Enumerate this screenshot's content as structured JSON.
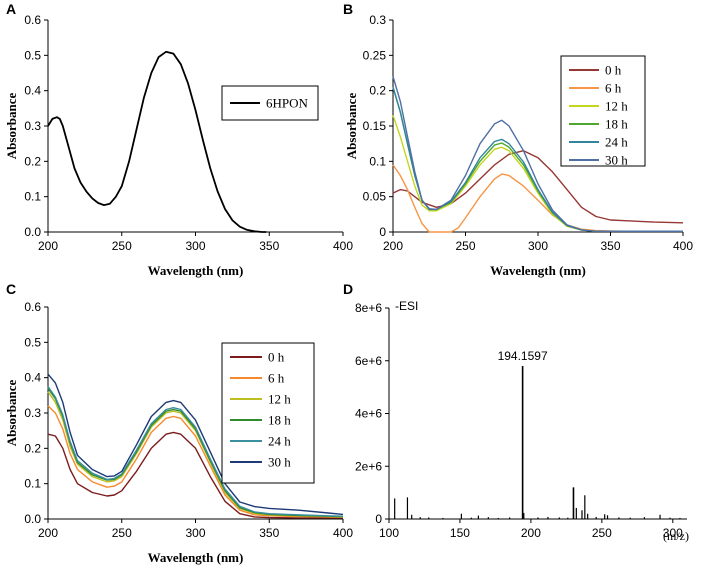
{
  "chart_data": [
    {
      "panel": "A",
      "type": "line",
      "xlabel": "Wavelength (nm)",
      "ylabel": "Absorbance",
      "xlim": [
        200,
        400
      ],
      "ylim": [
        0,
        0.6
      ],
      "xticks": [
        "200",
        "250",
        "300",
        "350",
        "400"
      ],
      "yticks": [
        "0.0",
        "0.1",
        "0.2",
        "0.3",
        "0.4",
        "0.5",
        "0.6"
      ],
      "series": [
        {
          "name": "6HPON",
          "color": "#000000",
          "x": [
            200,
            203,
            206,
            208,
            210,
            214,
            218,
            222,
            226,
            230,
            234,
            238,
            242,
            246,
            250,
            255,
            260,
            265,
            270,
            275,
            280,
            285,
            290,
            295,
            300,
            305,
            310,
            315,
            320,
            325,
            330,
            335,
            340,
            345,
            348
          ],
          "y": [
            0.3,
            0.32,
            0.325,
            0.32,
            0.3,
            0.24,
            0.18,
            0.14,
            0.115,
            0.095,
            0.082,
            0.076,
            0.08,
            0.1,
            0.13,
            0.2,
            0.29,
            0.38,
            0.45,
            0.495,
            0.51,
            0.505,
            0.475,
            0.42,
            0.345,
            0.26,
            0.18,
            0.115,
            0.065,
            0.033,
            0.015,
            0.006,
            0.002,
            0.0,
            0.0
          ]
        }
      ]
    },
    {
      "panel": "B",
      "type": "line",
      "xlabel": "Wavelength (nm)",
      "ylabel": "Absorbance",
      "xlim": [
        200,
        400
      ],
      "ylim": [
        0,
        0.3
      ],
      "xticks": [
        "200",
        "250",
        "300",
        "350",
        "400"
      ],
      "yticks": [
        "0",
        "0.05",
        "0.1",
        "0.15",
        "0.2",
        "0.25",
        "0.3"
      ],
      "series": [
        {
          "name": "0 h",
          "color": "#953735",
          "x": [
            200,
            205,
            210,
            215,
            220,
            230,
            240,
            250,
            260,
            270,
            280,
            290,
            300,
            310,
            320,
            330,
            340,
            350,
            360,
            380,
            400
          ],
          "y": [
            0.055,
            0.06,
            0.058,
            0.05,
            0.042,
            0.035,
            0.04,
            0.055,
            0.075,
            0.095,
            0.11,
            0.115,
            0.105,
            0.085,
            0.06,
            0.035,
            0.022,
            0.017,
            0.016,
            0.014,
            0.013
          ]
        },
        {
          "name": "6 h",
          "color": "#f79646",
          "x": [
            200,
            205,
            210,
            215,
            220,
            225,
            230,
            235,
            240,
            245,
            250,
            260,
            270,
            275,
            280,
            290,
            300,
            310,
            320,
            330,
            340,
            360,
            380,
            400
          ],
          "y": [
            0.095,
            0.08,
            0.06,
            0.035,
            0.012,
            0.0,
            0.0,
            0.0,
            0.0,
            0.006,
            0.02,
            0.05,
            0.075,
            0.082,
            0.08,
            0.065,
            0.045,
            0.024,
            0.01,
            0.004,
            0.002,
            0.001,
            0.001,
            0.001
          ]
        },
        {
          "name": "12 h",
          "color": "#c3d61e",
          "x": [
            200,
            205,
            210,
            215,
            220,
            225,
            230,
            240,
            250,
            260,
            270,
            275,
            280,
            290,
            300,
            310,
            320,
            330,
            340,
            360,
            380,
            400
          ],
          "y": [
            0.165,
            0.135,
            0.1,
            0.065,
            0.038,
            0.03,
            0.03,
            0.04,
            0.065,
            0.095,
            0.117,
            0.12,
            0.115,
            0.09,
            0.055,
            0.025,
            0.008,
            0.003,
            0.001,
            0.001,
            0.001,
            0.001
          ]
        },
        {
          "name": "18 h",
          "color": "#4ea72e",
          "x": [
            200,
            205,
            210,
            215,
            220,
            225,
            230,
            240,
            250,
            260,
            270,
            275,
            280,
            290,
            300,
            310,
            320,
            330,
            340,
            360,
            380,
            400
          ],
          "y": [
            0.205,
            0.17,
            0.125,
            0.08,
            0.045,
            0.032,
            0.032,
            0.042,
            0.068,
            0.1,
            0.123,
            0.126,
            0.12,
            0.095,
            0.058,
            0.027,
            0.009,
            0.003,
            0.001,
            0.001,
            0.001,
            0.001
          ]
        },
        {
          "name": "24 h",
          "color": "#31859c",
          "x": [
            200,
            205,
            210,
            215,
            220,
            225,
            230,
            240,
            250,
            260,
            270,
            275,
            280,
            290,
            300,
            310,
            320,
            330,
            340,
            360,
            380,
            400
          ],
          "y": [
            0.205,
            0.17,
            0.125,
            0.08,
            0.045,
            0.032,
            0.032,
            0.043,
            0.07,
            0.105,
            0.128,
            0.131,
            0.125,
            0.099,
            0.06,
            0.028,
            0.009,
            0.003,
            0.001,
            0.001,
            0.001,
            0.001
          ]
        },
        {
          "name": "30 h",
          "color": "#4f6fa5",
          "x": [
            200,
            205,
            210,
            215,
            220,
            225,
            230,
            240,
            250,
            260,
            270,
            275,
            280,
            290,
            300,
            310,
            320,
            330,
            340,
            360,
            380,
            400
          ],
          "y": [
            0.22,
            0.185,
            0.135,
            0.085,
            0.045,
            0.033,
            0.032,
            0.045,
            0.08,
            0.125,
            0.153,
            0.158,
            0.15,
            0.115,
            0.068,
            0.031,
            0.01,
            0.003,
            0.001,
            0.001,
            0.001,
            0.001
          ]
        }
      ]
    },
    {
      "panel": "C",
      "type": "line",
      "xlabel": "Wavelength (nm)",
      "ylabel": "Absorbance",
      "xlim": [
        200,
        400
      ],
      "ylim": [
        0,
        0.6
      ],
      "xticks": [
        "200",
        "250",
        "300",
        "350",
        "400"
      ],
      "yticks": [
        "0.0",
        "0.1",
        "0.2",
        "0.3",
        "0.4",
        "0.5",
        "0.6"
      ],
      "series": [
        {
          "name": "0 h",
          "color": "#7b1c1c",
          "x": [
            200,
            205,
            210,
            215,
            220,
            230,
            240,
            245,
            250,
            260,
            270,
            280,
            285,
            290,
            300,
            310,
            320,
            330,
            340,
            350,
            370,
            390,
            400
          ],
          "y": [
            0.24,
            0.235,
            0.2,
            0.14,
            0.1,
            0.075,
            0.065,
            0.068,
            0.08,
            0.135,
            0.2,
            0.24,
            0.245,
            0.24,
            0.2,
            0.12,
            0.05,
            0.015,
            0.006,
            0.004,
            0.003,
            0.003,
            0.003
          ]
        },
        {
          "name": "6 h",
          "color": "#f7892d",
          "x": [
            200,
            205,
            210,
            215,
            220,
            230,
            240,
            245,
            250,
            260,
            270,
            280,
            285,
            290,
            300,
            310,
            320,
            330,
            340,
            350,
            370,
            390,
            400
          ],
          "y": [
            0.32,
            0.3,
            0.255,
            0.185,
            0.14,
            0.105,
            0.09,
            0.093,
            0.105,
            0.17,
            0.245,
            0.285,
            0.29,
            0.285,
            0.235,
            0.15,
            0.068,
            0.025,
            0.012,
            0.009,
            0.007,
            0.006,
            0.005
          ]
        },
        {
          "name": "12 h",
          "color": "#bcbf1f",
          "x": [
            200,
            205,
            210,
            215,
            220,
            230,
            240,
            245,
            250,
            260,
            270,
            280,
            285,
            290,
            300,
            310,
            320,
            330,
            340,
            350,
            370,
            390,
            400
          ],
          "y": [
            0.36,
            0.33,
            0.28,
            0.205,
            0.155,
            0.12,
            0.105,
            0.108,
            0.12,
            0.185,
            0.26,
            0.3,
            0.305,
            0.3,
            0.25,
            0.16,
            0.075,
            0.03,
            0.016,
            0.012,
            0.009,
            0.007,
            0.006
          ]
        },
        {
          "name": "18 h",
          "color": "#2e8b2e",
          "x": [
            200,
            205,
            210,
            215,
            220,
            230,
            240,
            245,
            250,
            260,
            270,
            280,
            285,
            290,
            300,
            310,
            320,
            330,
            340,
            350,
            370,
            390,
            400
          ],
          "y": [
            0.37,
            0.34,
            0.29,
            0.215,
            0.16,
            0.125,
            0.11,
            0.112,
            0.125,
            0.19,
            0.265,
            0.305,
            0.31,
            0.305,
            0.255,
            0.165,
            0.08,
            0.032,
            0.018,
            0.013,
            0.01,
            0.008,
            0.007
          ]
        },
        {
          "name": "24 h",
          "color": "#3b8f9e",
          "x": [
            200,
            205,
            210,
            215,
            220,
            230,
            240,
            245,
            250,
            260,
            270,
            280,
            285,
            290,
            300,
            310,
            320,
            330,
            340,
            350,
            370,
            390,
            400
          ],
          "y": [
            0.375,
            0.345,
            0.295,
            0.22,
            0.165,
            0.13,
            0.112,
            0.115,
            0.128,
            0.195,
            0.27,
            0.31,
            0.315,
            0.31,
            0.26,
            0.17,
            0.085,
            0.036,
            0.02,
            0.015,
            0.012,
            0.009,
            0.008
          ]
        },
        {
          "name": "30 h",
          "color": "#1f3a78",
          "x": [
            200,
            205,
            210,
            215,
            220,
            230,
            240,
            245,
            250,
            260,
            270,
            280,
            285,
            290,
            300,
            310,
            320,
            330,
            340,
            350,
            370,
            390,
            400
          ],
          "y": [
            0.41,
            0.385,
            0.33,
            0.245,
            0.18,
            0.14,
            0.12,
            0.122,
            0.135,
            0.21,
            0.29,
            0.33,
            0.335,
            0.33,
            0.28,
            0.19,
            0.1,
            0.048,
            0.035,
            0.03,
            0.025,
            0.017,
            0.013
          ]
        }
      ]
    },
    {
      "panel": "D",
      "type": "bar",
      "annotation": "-ESI",
      "xlabel": "(m/z)",
      "xlim": [
        100,
        310
      ],
      "ylim": [
        0,
        8000000
      ],
      "xticks": [
        "100",
        "150",
        "200",
        "250",
        "300"
      ],
      "yticks": [
        "0",
        "2e+6",
        "4e+6",
        "6e+6",
        "8e+6"
      ],
      "peak_label": "194.1597",
      "peak_label_mz": 194.1597,
      "peaks": [
        {
          "mz": 104,
          "intensity": 780000
        },
        {
          "mz": 113,
          "intensity": 820000
        },
        {
          "mz": 116,
          "intensity": 160000
        },
        {
          "mz": 122,
          "intensity": 70000
        },
        {
          "mz": 128,
          "intensity": 60000
        },
        {
          "mz": 138,
          "intensity": 40000
        },
        {
          "mz": 151,
          "intensity": 200000
        },
        {
          "mz": 158,
          "intensity": 50000
        },
        {
          "mz": 163,
          "intensity": 130000
        },
        {
          "mz": 170,
          "intensity": 70000
        },
        {
          "mz": 177,
          "intensity": 40000
        },
        {
          "mz": 185,
          "intensity": 60000
        },
        {
          "mz": 194.1597,
          "intensity": 5800000
        },
        {
          "mz": 195,
          "intensity": 230000
        },
        {
          "mz": 205,
          "intensity": 60000
        },
        {
          "mz": 212,
          "intensity": 80000
        },
        {
          "mz": 220,
          "intensity": 60000
        },
        {
          "mz": 226,
          "intensity": 50000
        },
        {
          "mz": 230,
          "intensity": 1200000
        },
        {
          "mz": 232,
          "intensity": 420000
        },
        {
          "mz": 236,
          "intensity": 330000
        },
        {
          "mz": 238,
          "intensity": 900000
        },
        {
          "mz": 240,
          "intensity": 200000
        },
        {
          "mz": 246,
          "intensity": 80000
        },
        {
          "mz": 252,
          "intensity": 180000
        },
        {
          "mz": 254,
          "intensity": 140000
        },
        {
          "mz": 262,
          "intensity": 60000
        },
        {
          "mz": 270,
          "intensity": 50000
        },
        {
          "mz": 280,
          "intensity": 70000
        },
        {
          "mz": 291,
          "intensity": 160000
        },
        {
          "mz": 298,
          "intensity": 50000
        },
        {
          "mz": 305,
          "intensity": 40000
        }
      ]
    }
  ]
}
